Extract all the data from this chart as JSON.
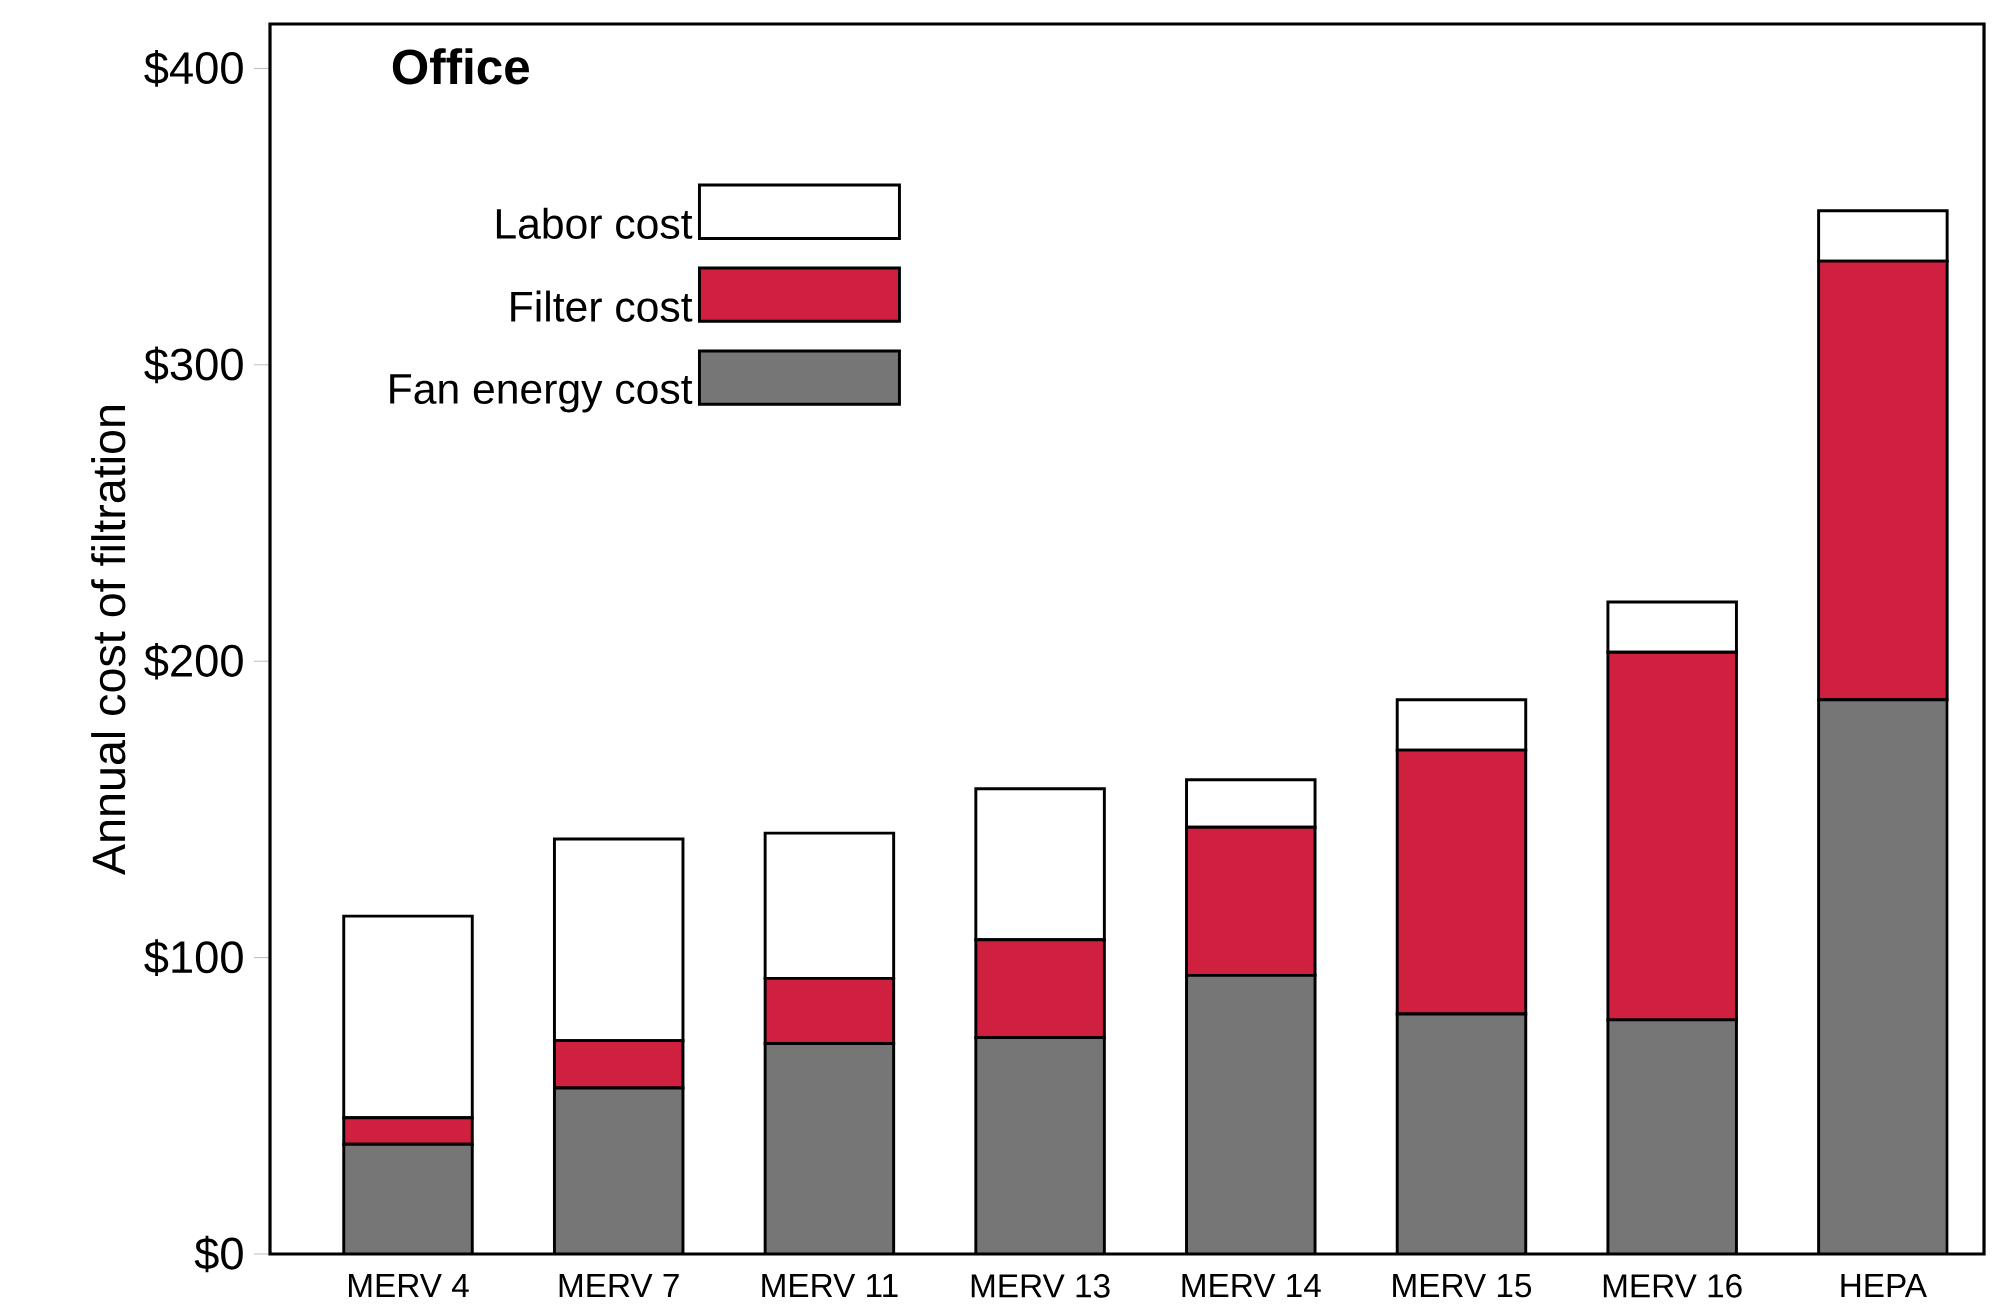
{
  "chart_data": {
    "type": "bar",
    "stacked": true,
    "title": "Office",
    "ylabel": "Annual cost of filtration",
    "categories": [
      "MERV 4",
      "MERV 7",
      "MERV 11",
      "MERV 13",
      "MERV 14",
      "MERV 15",
      "MERV 16",
      "HEPA"
    ],
    "series": [
      {
        "name": "Fan energy cost",
        "color": "#767676",
        "values": [
          37,
          56,
          71,
          73,
          94,
          81,
          79,
          187
        ]
      },
      {
        "name": "Filter cost",
        "color": "#d02040",
        "values": [
          9,
          16,
          22,
          33,
          50,
          89,
          124,
          148
        ]
      },
      {
        "name": "Labor cost",
        "color": "#ffffff",
        "values": [
          68,
          68,
          49,
          51,
          16,
          17,
          17,
          17
        ]
      }
    ],
    "ylim": [
      0,
      415
    ],
    "yticks": [
      {
        "value": 0,
        "label": "$0"
      },
      {
        "value": 100,
        "label": "$100"
      },
      {
        "value": 200,
        "label": "$200"
      },
      {
        "value": 300,
        "label": "$300"
      },
      {
        "value": 400,
        "label": "$400"
      }
    ],
    "legend": "top left"
  }
}
